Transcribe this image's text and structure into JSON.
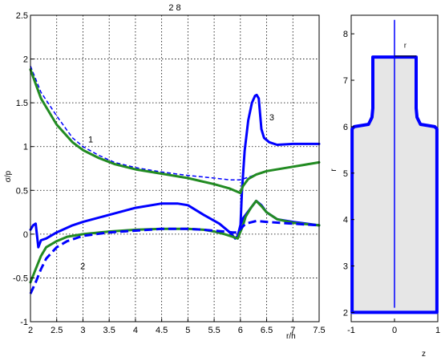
{
  "title": "2 8",
  "chart_data": [
    {
      "type": "line",
      "title": "2 8",
      "xlabel": "r/h",
      "ylabel": "σ/p",
      "xlim": [
        2,
        7.5
      ],
      "ylim": [
        -1,
        2.5
      ],
      "xticks": [
        "2",
        "2.5",
        "3",
        "3.5",
        "4",
        "4.5",
        "5",
        "5.5",
        "6",
        "6.5",
        "7",
        "7.5"
      ],
      "yticks": [
        "-1",
        "-0.5",
        "0",
        "0.5",
        "1",
        "1.5",
        "2",
        "2.5"
      ],
      "grid": true,
      "annotations": [
        {
          "text": "1",
          "x": 3.1,
          "y": 1.05
        },
        {
          "text": "2",
          "x": 2.95,
          "y": -0.4
        },
        {
          "text": "3",
          "x": 6.55,
          "y": 1.3
        }
      ],
      "series": [
        {
          "color": "#0000ff",
          "style": "solid",
          "width": 3,
          "x": [
            6.0,
            6.03,
            6.08,
            6.15,
            6.22,
            6.28,
            6.31,
            6.35,
            6.4,
            6.45,
            6.55,
            6.7,
            7.0,
            7.5
          ],
          "y": [
            0.07,
            0.5,
            0.95,
            1.3,
            1.5,
            1.58,
            1.59,
            1.55,
            1.2,
            1.1,
            1.05,
            1.02,
            1.03,
            1.03
          ]
        },
        {
          "color": "#0000ff",
          "style": "dashed",
          "width": 1.5,
          "x": [
            2.0,
            2.2,
            2.5,
            2.8,
            3.0,
            3.3,
            3.6,
            4.0,
            4.5,
            5.0,
            5.5,
            5.8,
            6.0,
            6.2,
            6.5,
            7.0,
            7.5
          ],
          "y": [
            1.92,
            1.62,
            1.35,
            1.1,
            1.0,
            0.9,
            0.82,
            0.76,
            0.71,
            0.67,
            0.64,
            0.62,
            0.62,
            0.66,
            0.72,
            0.77,
            0.82
          ]
        },
        {
          "color": "#228b22",
          "style": "solid",
          "width": 3,
          "x": [
            2.0,
            2.2,
            2.5,
            2.8,
            3.0,
            3.3,
            3.6,
            4.0,
            4.5,
            5.0,
            5.5,
            5.8,
            6.0,
            6.05,
            6.15,
            6.3,
            6.5,
            7.0,
            7.5
          ],
          "y": [
            1.88,
            1.55,
            1.25,
            1.05,
            0.96,
            0.87,
            0.8,
            0.74,
            0.69,
            0.64,
            0.57,
            0.52,
            0.47,
            0.55,
            0.63,
            0.68,
            0.72,
            0.77,
            0.82
          ]
        },
        {
          "color": "#0000ff",
          "style": "solid",
          "width": 3,
          "x": [
            2.0,
            2.05,
            2.1,
            2.15,
            2.2,
            2.3,
            2.5,
            2.8,
            3.0,
            3.5,
            4.0,
            4.5,
            4.8,
            5.0,
            5.3,
            5.6,
            5.8,
            5.9,
            5.95,
            6.0,
            6.05,
            6.1,
            6.2,
            6.3,
            6.4,
            6.5,
            6.7,
            7.0,
            7.5
          ],
          "y": [
            0.05,
            0.1,
            0.12,
            -0.15,
            -0.07,
            -0.05,
            0.02,
            0.1,
            0.14,
            0.22,
            0.3,
            0.35,
            0.35,
            0.33,
            0.22,
            0.12,
            0.02,
            -0.05,
            -0.02,
            0.1,
            0.18,
            0.22,
            0.3,
            0.38,
            0.33,
            0.25,
            0.17,
            0.14,
            0.1
          ]
        },
        {
          "color": "#228b22",
          "style": "solid",
          "width": 3,
          "x": [
            2.0,
            2.1,
            2.2,
            2.3,
            2.5,
            2.7,
            3.0,
            3.5,
            4.0,
            4.5,
            5.0,
            5.3,
            5.5,
            5.7,
            5.85,
            5.95,
            6.05,
            6.1,
            6.2,
            6.3,
            6.4,
            6.5,
            6.7,
            7.0,
            7.5
          ],
          "y": [
            -0.55,
            -0.4,
            -0.25,
            -0.15,
            -0.08,
            -0.03,
            0.0,
            0.03,
            0.05,
            0.06,
            0.06,
            0.05,
            0.03,
            0.0,
            -0.03,
            -0.05,
            0.1,
            0.2,
            0.3,
            0.38,
            0.32,
            0.25,
            0.17,
            0.13,
            0.1
          ]
        },
        {
          "color": "#0000ff",
          "style": "dashed",
          "width": 3,
          "x": [
            2.0,
            2.1,
            2.2,
            2.3,
            2.5,
            2.7,
            3.0,
            3.5,
            4.0,
            4.5,
            5.0,
            5.3,
            5.5,
            5.7,
            5.85,
            5.95,
            6.0,
            6.1,
            6.3,
            6.5,
            7.0,
            7.5
          ],
          "y": [
            -0.68,
            -0.55,
            -0.4,
            -0.28,
            -0.15,
            -0.08,
            -0.02,
            0.02,
            0.04,
            0.06,
            0.06,
            0.05,
            0.04,
            0.03,
            0.02,
            0.02,
            0.06,
            0.12,
            0.15,
            0.14,
            0.12,
            0.1
          ]
        }
      ]
    },
    {
      "type": "diagram",
      "xlabel": "z",
      "ylabel": "r",
      "xlim": [
        -1,
        1
      ],
      "ylim": [
        1.8,
        8.4
      ],
      "xticks": [
        "-1",
        "0",
        "1"
      ],
      "yticks": [
        "2",
        "3",
        "4",
        "5",
        "6",
        "7",
        "8"
      ],
      "annotations": [
        {
          "text": "r"
        }
      ],
      "fill_color": "#e6e6e6",
      "outline_color": "#0000ff"
    }
  ]
}
